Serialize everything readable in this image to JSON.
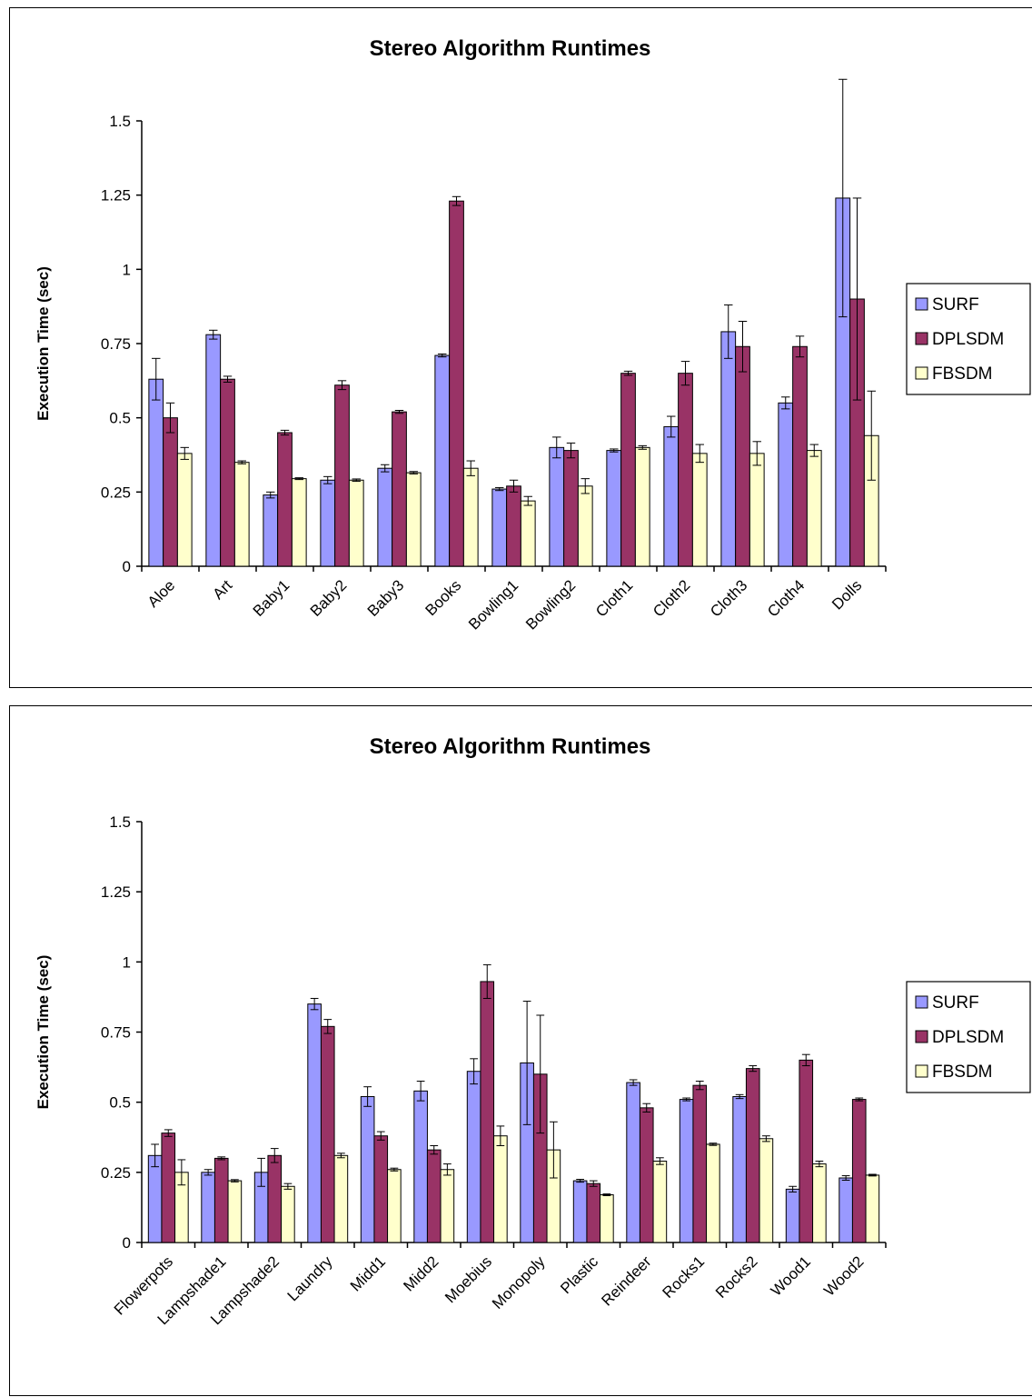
{
  "chart_data": [
    {
      "type": "bar",
      "title": "Stereo Algorithm Runtimes",
      "xlabel": "",
      "ylabel": "Execution Time (sec)",
      "ylim": [
        0,
        1.5
      ],
      "yticks": [
        "0",
        "0.25",
        "0.5",
        "0.75",
        "1",
        "1.25",
        "1.5"
      ],
      "legend": "right",
      "categories": [
        "Aloe",
        "Art",
        "Baby1",
        "Baby2",
        "Baby3",
        "Books",
        "Bowling1",
        "Bowling2",
        "Cloth1",
        "Cloth2",
        "Cloth3",
        "Cloth4",
        "Dolls"
      ],
      "series": [
        {
          "name": "SURF",
          "color": "#9999ff",
          "values": [
            0.63,
            0.78,
            0.24,
            0.29,
            0.33,
            0.71,
            0.26,
            0.4,
            0.39,
            0.47,
            0.79,
            0.55,
            1.24
          ],
          "errors": [
            0.07,
            0.015,
            0.01,
            0.012,
            0.012,
            0.005,
            0.005,
            0.035,
            0.005,
            0.035,
            0.09,
            0.02,
            0.4
          ]
        },
        {
          "name": "DPLSDM",
          "color": "#993366",
          "values": [
            0.5,
            0.63,
            0.45,
            0.61,
            0.52,
            1.23,
            0.27,
            0.39,
            0.65,
            0.65,
            0.74,
            0.74,
            0.9
          ],
          "errors": [
            0.05,
            0.01,
            0.008,
            0.015,
            0.005,
            0.015,
            0.02,
            0.025,
            0.007,
            0.04,
            0.085,
            0.035,
            0.34
          ]
        },
        {
          "name": "FBSDM",
          "color": "#ffffcc",
          "values": [
            0.38,
            0.35,
            0.295,
            0.29,
            0.315,
            0.33,
            0.22,
            0.27,
            0.4,
            0.38,
            0.38,
            0.39,
            0.44
          ],
          "errors": [
            0.02,
            0.005,
            0.003,
            0.004,
            0.004,
            0.025,
            0.015,
            0.025,
            0.006,
            0.03,
            0.04,
            0.02,
            0.15
          ]
        }
      ]
    },
    {
      "type": "bar",
      "title": "Stereo Algorithm Runtimes",
      "xlabel": "",
      "ylabel": "Execution Time (sec)",
      "ylim": [
        0,
        1.5
      ],
      "yticks": [
        "0",
        "0.25",
        "0.5",
        "0.75",
        "1",
        "1.25",
        "1.5"
      ],
      "legend": "right",
      "categories": [
        "Flowerpots",
        "Lampshade1",
        "Lampshade2",
        "Laundry",
        "Midd1",
        "Midd2",
        "Moebius",
        "Monopoly",
        "Plastic",
        "Reindeer",
        "Rocks1",
        "Rocks2",
        "Wood1",
        "Wood2"
      ],
      "series": [
        {
          "name": "SURF",
          "color": "#9999ff",
          "values": [
            0.31,
            0.25,
            0.25,
            0.85,
            0.52,
            0.54,
            0.61,
            0.64,
            0.22,
            0.57,
            0.51,
            0.52,
            0.19,
            0.23
          ],
          "errors": [
            0.04,
            0.01,
            0.05,
            0.02,
            0.035,
            0.035,
            0.045,
            0.22,
            0.005,
            0.01,
            0.005,
            0.007,
            0.01,
            0.008
          ]
        },
        {
          "name": "DPLSDM",
          "color": "#993366",
          "values": [
            0.39,
            0.3,
            0.31,
            0.77,
            0.38,
            0.33,
            0.93,
            0.6,
            0.21,
            0.48,
            0.56,
            0.62,
            0.65,
            0.51
          ],
          "errors": [
            0.012,
            0.005,
            0.025,
            0.025,
            0.015,
            0.015,
            0.06,
            0.21,
            0.01,
            0.015,
            0.015,
            0.01,
            0.02,
            0.005
          ]
        },
        {
          "name": "FBSDM",
          "color": "#ffffcc",
          "values": [
            0.25,
            0.22,
            0.2,
            0.31,
            0.26,
            0.26,
            0.38,
            0.33,
            0.17,
            0.29,
            0.35,
            0.37,
            0.28,
            0.24
          ],
          "errors": [
            0.045,
            0.004,
            0.01,
            0.008,
            0.005,
            0.02,
            0.035,
            0.1,
            0.003,
            0.012,
            0.004,
            0.01,
            0.01,
            0.003
          ]
        }
      ]
    }
  ]
}
